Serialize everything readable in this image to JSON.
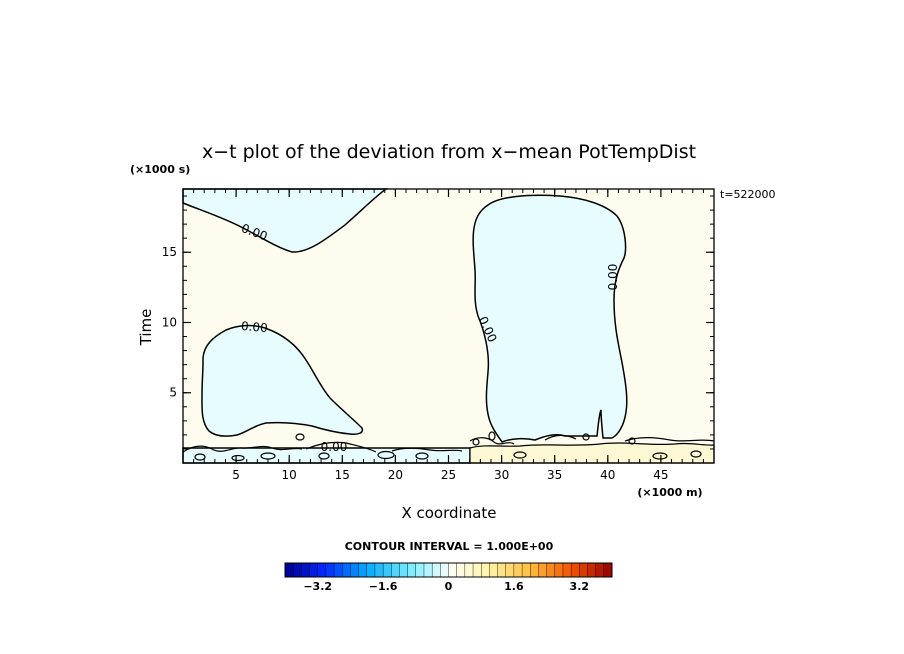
{
  "chart_data": {
    "type": "contour",
    "title": "x−t plot of the deviation from x−mean PotTempDist",
    "xlabel": "X coordinate",
    "ylabel": "Time",
    "x_unit": "(×1000 m)",
    "y_unit": "(×1000 s)",
    "time_stamp": "t=522000",
    "xlim": [
      0,
      50
    ],
    "ylim": [
      0,
      19.5
    ],
    "x_ticks": [
      5,
      10,
      15,
      20,
      25,
      30,
      35,
      40,
      45
    ],
    "x_tick_labels": [
      "5",
      "10",
      "15",
      "20",
      "25",
      "30",
      "35",
      "40",
      "45"
    ],
    "y_ticks": [
      5,
      10,
      15
    ],
    "y_tick_labels": [
      "5",
      "10",
      "15"
    ],
    "contour_levels": [
      0.0
    ],
    "contour_labels": [
      "0.00",
      "0.00",
      "0.00",
      "0.00",
      "0.00"
    ],
    "contour_interval_text": "CONTOUR INTERVAL = 1.000E+00",
    "regions": [
      {
        "sign": "negative",
        "x": [
          0,
          19
        ],
        "y": [
          15.5,
          19.5
        ]
      },
      {
        "sign": "negative",
        "x": [
          1.5,
          16.5
        ],
        "y": [
          2.2,
          10.2
        ]
      },
      {
        "sign": "negative",
        "x": [
          27,
          42
        ],
        "y": [
          1.3,
          19.1
        ]
      },
      {
        "sign": "negative",
        "x": [
          0,
          27
        ],
        "y": [
          0,
          1.2
        ]
      }
    ],
    "colorbar": {
      "min": -4,
      "max": 4,
      "n_colors": 40,
      "ticks": [
        -3.2,
        -1.6,
        0,
        1.6,
        3.2
      ],
      "tick_labels": [
        "−3.2",
        "−1.6",
        "0",
        "1.6",
        "3.2"
      ]
    },
    "colors": {
      "background_positive": "#fefcee",
      "negative_fill": "#e6fcfe",
      "near_zero_positive": "#fcf8d4",
      "contour_line": "#000000"
    }
  }
}
